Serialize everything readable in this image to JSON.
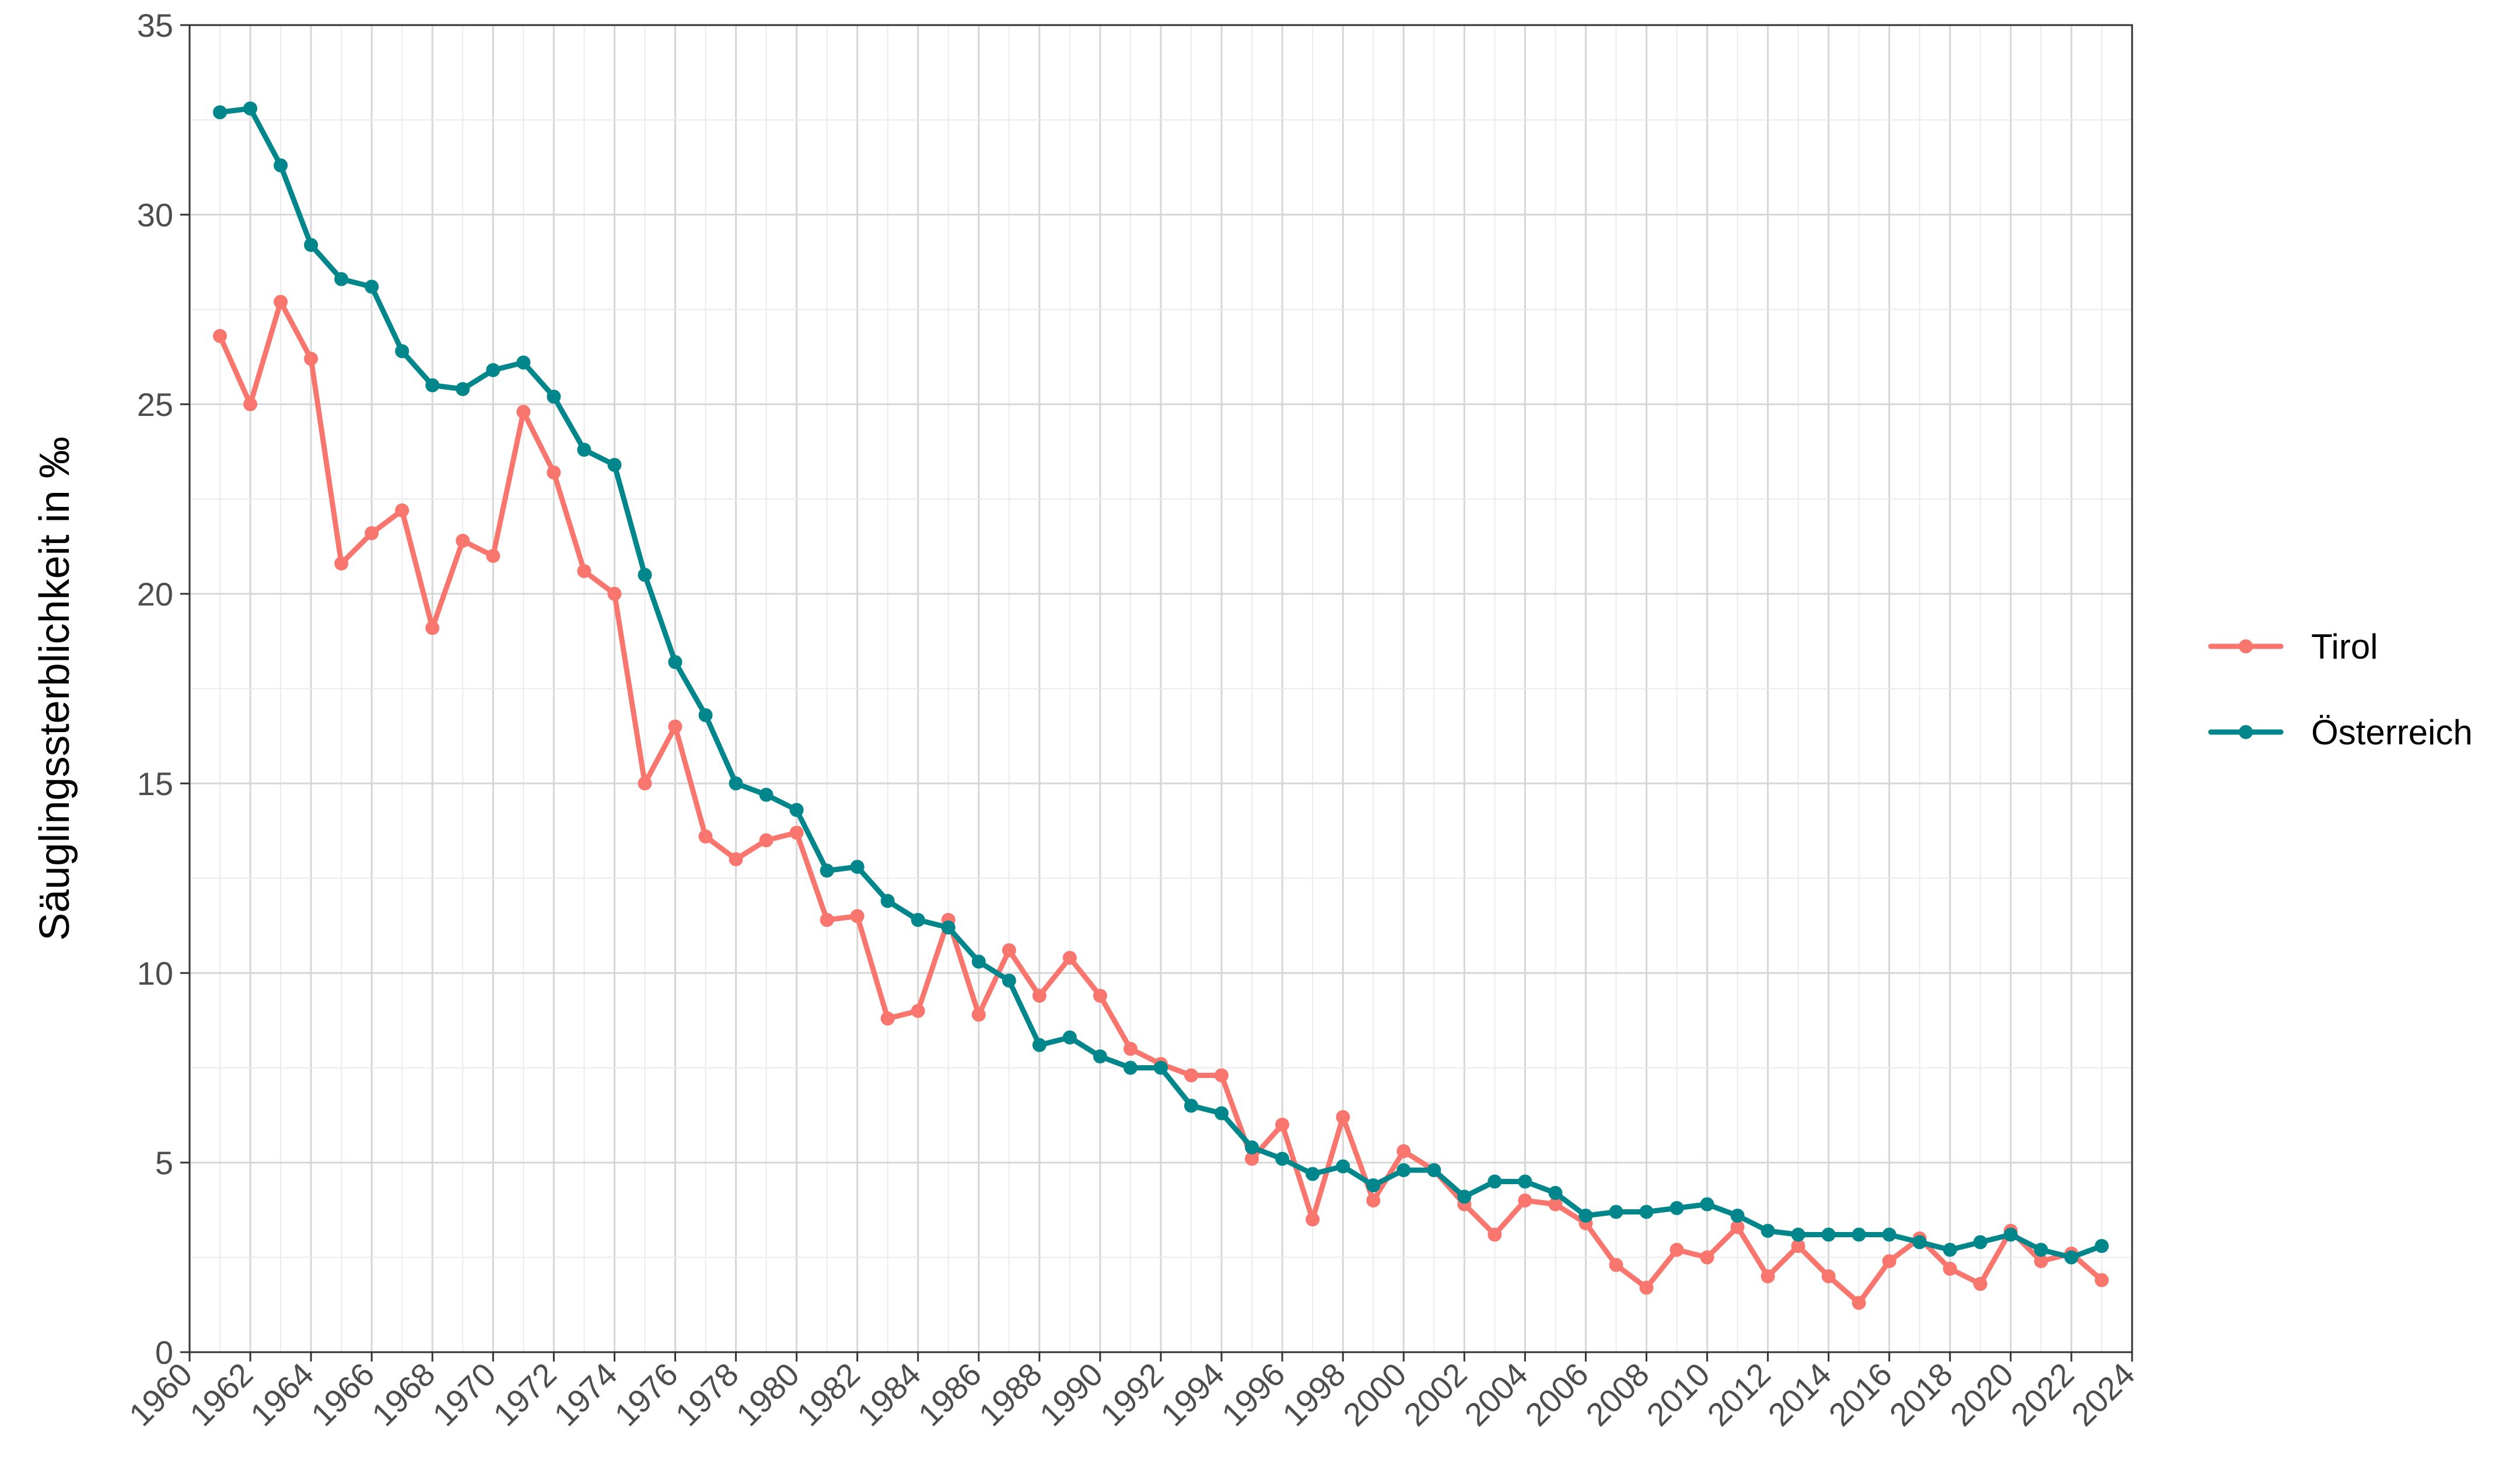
{
  "chart_data": {
    "type": "line",
    "title": "",
    "xlabel": "",
    "ylabel": "Säuglingssterblichkeit in ‰",
    "xlim": [
      1960,
      2024
    ],
    "ylim": [
      0,
      35
    ],
    "x_ticks": [
      "1960",
      "1962",
      "1964",
      "1966",
      "1968",
      "1970",
      "1972",
      "1974",
      "1976",
      "1978",
      "1980",
      "1982",
      "1984",
      "1986",
      "1988",
      "1990",
      "1992",
      "1994",
      "1996",
      "1998",
      "2000",
      "2002",
      "2004",
      "2006",
      "2008",
      "2010",
      "2012",
      "2014",
      "2016",
      "2018",
      "2020",
      "2022",
      "2024"
    ],
    "y_ticks": [
      "0",
      "5",
      "10",
      "15",
      "20",
      "25",
      "30",
      "35"
    ],
    "grid": true,
    "legend_position": "right",
    "x": [
      1961,
      1962,
      1963,
      1964,
      1965,
      1966,
      1967,
      1968,
      1969,
      1970,
      1971,
      1972,
      1973,
      1974,
      1975,
      1976,
      1977,
      1978,
      1979,
      1980,
      1981,
      1982,
      1983,
      1984,
      1985,
      1986,
      1987,
      1988,
      1989,
      1990,
      1991,
      1992,
      1993,
      1994,
      1995,
      1996,
      1997,
      1998,
      1999,
      2000,
      2001,
      2002,
      2003,
      2004,
      2005,
      2006,
      2007,
      2008,
      2009,
      2010,
      2011,
      2012,
      2013,
      2014,
      2015,
      2016,
      2017,
      2018,
      2019,
      2020,
      2021,
      2022,
      2023
    ],
    "series": [
      {
        "name": "Tirol",
        "color": "#F8766D",
        "values": [
          26.8,
          25.0,
          27.7,
          26.2,
          20.8,
          21.6,
          22.2,
          19.1,
          21.4,
          21.0,
          24.8,
          23.2,
          20.6,
          20.0,
          15.0,
          16.5,
          13.6,
          13.0,
          13.5,
          13.7,
          11.4,
          11.5,
          8.8,
          9.0,
          11.4,
          8.9,
          10.6,
          9.4,
          10.4,
          9.4,
          8.0,
          7.6,
          7.3,
          7.3,
          5.1,
          6.0,
          3.5,
          6.2,
          4.0,
          5.3,
          4.8,
          3.9,
          3.1,
          4.0,
          3.9,
          3.4,
          2.3,
          1.7,
          2.7,
          2.5,
          3.3,
          2.0,
          2.8,
          2.0,
          1.3,
          2.4,
          3.0,
          2.2,
          1.8,
          3.2,
          2.4,
          2.6,
          1.9
        ]
      },
      {
        "name": "Österreich",
        "color": "#00868B",
        "values": [
          32.7,
          32.8,
          31.3,
          29.2,
          28.3,
          28.1,
          26.4,
          25.5,
          25.4,
          25.9,
          26.1,
          25.2,
          23.8,
          23.4,
          20.5,
          18.2,
          16.8,
          15.0,
          14.7,
          14.3,
          12.7,
          12.8,
          11.9,
          11.4,
          11.2,
          10.3,
          9.8,
          8.1,
          8.3,
          7.8,
          7.5,
          7.5,
          6.5,
          6.3,
          5.4,
          5.1,
          4.7,
          4.9,
          4.4,
          4.8,
          4.8,
          4.1,
          4.5,
          4.5,
          4.2,
          3.6,
          3.7,
          3.7,
          3.8,
          3.9,
          3.6,
          3.2,
          3.1,
          3.1,
          3.1,
          3.1,
          2.9,
          2.7,
          2.9,
          3.1,
          2.7,
          2.5,
          2.8
        ]
      }
    ]
  }
}
